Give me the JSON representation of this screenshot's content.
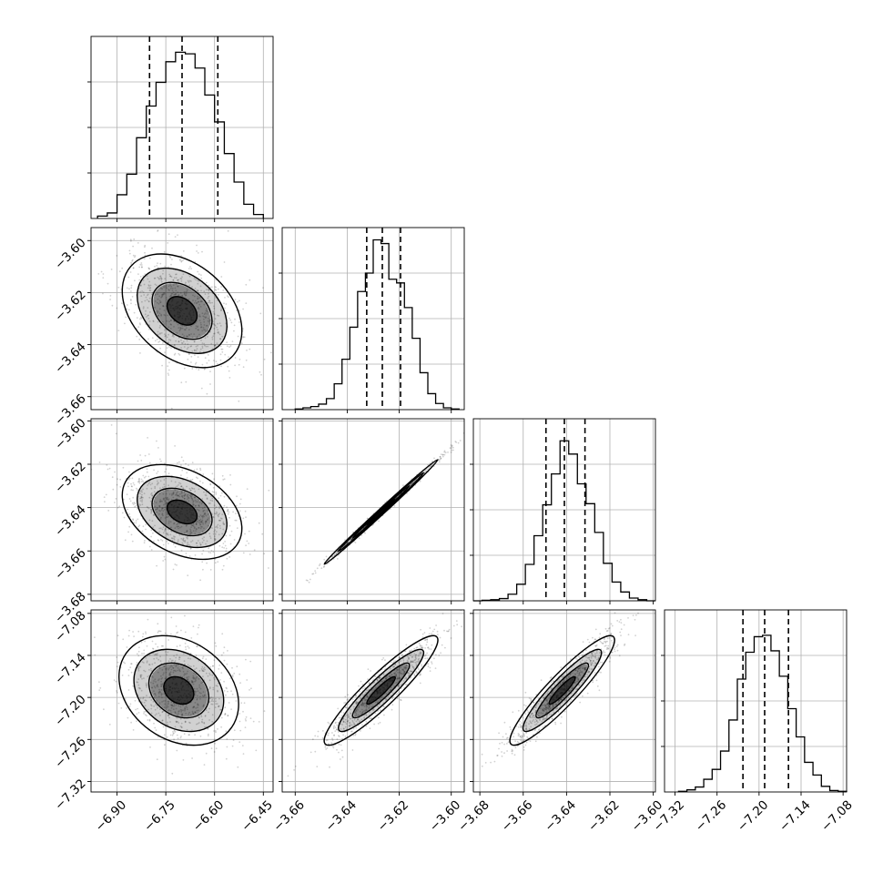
{
  "chart_data": {
    "type": "corner",
    "parameters": 4,
    "colors": {
      "line": "#000000",
      "grid": "#b0b0b0",
      "density": "#000000",
      "points": "#000000"
    },
    "grid": true,
    "axis_ranges": {
      "p1": [
        -6.98,
        -6.42
      ],
      "p2": [
        -3.665,
        -3.595
      ],
      "p3": [
        -3.683,
        -3.599
      ],
      "p4": [
        -7.335,
        -7.075
      ]
    },
    "x_tick_labels": {
      "p1": [
        "−6.90",
        "−6.75",
        "−6.60",
        "−6.45"
      ],
      "p2": [
        "−3.66",
        "−3.64",
        "−3.62",
        "−3.60"
      ],
      "p3": [
        "−3.68",
        "−3.66",
        "−3.64",
        "−3.62",
        "−3.60"
      ],
      "p4": [
        "−7.32",
        "−7.26",
        "−7.20",
        "−7.14",
        "−7.08"
      ]
    },
    "y_tick_labels": {
      "p2": [
        "−3.60",
        "−3.62",
        "−3.64",
        "−3.66"
      ],
      "p3": [
        "−3.60",
        "−3.62",
        "−3.64",
        "−3.66",
        "−3.68"
      ],
      "p4": [
        "−7.08",
        "−7.14",
        "−7.20",
        "−7.26",
        "−7.32"
      ]
    },
    "x_tick_values": {
      "p1": [
        -6.9,
        -6.75,
        -6.6,
        -6.45
      ],
      "p2": [
        -3.66,
        -3.64,
        -3.62,
        -3.6
      ],
      "p3": [
        -3.68,
        -3.66,
        -3.64,
        -3.62,
        -3.6
      ],
      "p4": [
        -7.32,
        -7.26,
        -7.2,
        -7.14,
        -7.08
      ]
    },
    "y_tick_values": {
      "p2": [
        -3.6,
        -3.62,
        -3.64,
        -3.66
      ],
      "p3": [
        -3.6,
        -3.62,
        -3.64,
        -3.66,
        -3.68
      ],
      "p4": [
        -7.08,
        -7.14,
        -7.2,
        -7.26,
        -7.32
      ]
    },
    "marginals": [
      {
        "parameter": "p1",
        "quantiles": [
          -6.8,
          -6.7,
          -6.59
        ],
        "bin_edges": [
          -6.96,
          -6.93,
          -6.9,
          -6.87,
          -6.84,
          -6.81,
          -6.78,
          -6.75,
          -6.72,
          -6.69,
          -6.66,
          -6.63,
          -6.6,
          -6.57,
          -6.54,
          -6.51,
          -6.48,
          -6.45
        ],
        "counts": [
          15,
          35,
          150,
          280,
          510,
          710,
          860,
          990,
          1050,
          1040,
          950,
          780,
          610,
          410,
          230,
          90,
          25
        ],
        "ylim": [
          0,
          1150
        ]
      },
      {
        "parameter": "p2",
        "quantiles": [
          -3.6325,
          -3.6265,
          -3.6195
        ],
        "bin_edges": [
          -3.66,
          -3.657,
          -3.654,
          -3.651,
          -3.648,
          -3.645,
          -3.642,
          -3.639,
          -3.636,
          -3.633,
          -3.63,
          -3.627,
          -3.624,
          -3.621,
          -3.618,
          -3.615,
          -3.612,
          -3.609,
          -3.606,
          -3.603,
          -3.6,
          -3.597
        ],
        "counts": [
          5,
          15,
          25,
          45,
          90,
          210,
          410,
          670,
          960,
          1110,
          1380,
          1350,
          1060,
          1030,
          830,
          580,
          300,
          130,
          50,
          15,
          5
        ],
        "ylim": [
          0,
          1480
        ]
      },
      {
        "parameter": "p3",
        "quantiles": [
          -3.6495,
          -3.641,
          -3.6315
        ],
        "bin_edges": [
          -3.683,
          -3.679,
          -3.675,
          -3.671,
          -3.667,
          -3.663,
          -3.659,
          -3.655,
          -3.651,
          -3.647,
          -3.643,
          -3.639,
          -3.635,
          -3.631,
          -3.627,
          -3.623,
          -3.619,
          -3.615,
          -3.611,
          -3.607,
          -3.603,
          -3.599
        ],
        "counts": [
          0,
          5,
          10,
          20,
          60,
          150,
          330,
          590,
          870,
          1150,
          1450,
          1330,
          1060,
          880,
          620,
          340,
          170,
          80,
          25,
          10,
          0
        ],
        "ylim": [
          0,
          1650
        ]
      },
      {
        "parameter": "p4",
        "quantiles": [
          -7.223,
          -7.192,
          -7.158
        ],
        "bin_edges": [
          -7.315,
          -7.303,
          -7.291,
          -7.279,
          -7.267,
          -7.255,
          -7.243,
          -7.231,
          -7.219,
          -7.207,
          -7.195,
          -7.183,
          -7.171,
          -7.159,
          -7.147,
          -7.135,
          -7.123,
          -7.111,
          -7.099,
          -7.087,
          -7.075
        ],
        "counts": [
          5,
          15,
          35,
          90,
          160,
          290,
          510,
          800,
          990,
          1100,
          1110,
          1000,
          820,
          590,
          390,
          210,
          120,
          40,
          10,
          5
        ],
        "ylim": [
          0,
          1290
        ]
      }
    ],
    "joint": [
      {
        "x": "p1",
        "y": "p2",
        "center": [
          -6.7,
          -3.627
        ],
        "sigma": [
          0.08,
          0.0095
        ],
        "rho": -0.35,
        "angle_deg": -20
      },
      {
        "x": "p1",
        "y": "p3",
        "center": [
          -6.7,
          -3.642
        ],
        "sigma": [
          0.08,
          0.0095
        ],
        "rho": -0.35,
        "angle_deg": -20
      },
      {
        "x": "p1",
        "y": "p4",
        "center": [
          -6.71,
          -7.19
        ],
        "sigma": [
          0.08,
          0.034
        ],
        "rho": -0.25,
        "angle_deg": -10
      },
      {
        "x": "p2",
        "y": "p3",
        "center": [
          -3.627,
          -3.642
        ],
        "sigma": [
          0.0095,
          0.0105
        ],
        "rho": 0.997,
        "angle_deg": 0
      },
      {
        "x": "p2",
        "y": "p4",
        "center": [
          -3.627,
          -7.19
        ],
        "sigma": [
          0.0095,
          0.034
        ],
        "rho": 0.92,
        "angle_deg": 0
      },
      {
        "x": "p3",
        "y": "p4",
        "center": [
          -3.642,
          -7.19
        ],
        "sigma": [
          0.0105,
          0.034
        ],
        "rho": 0.92,
        "angle_deg": 0
      }
    ],
    "contour_levels_sigma": [
      0.5,
      1.0,
      1.5,
      2.0
    ]
  }
}
